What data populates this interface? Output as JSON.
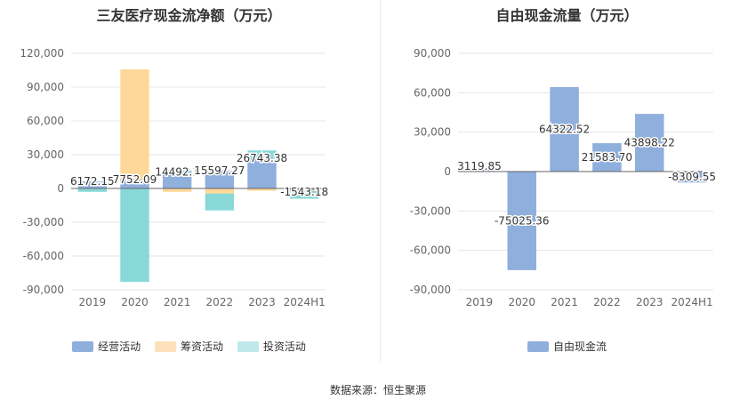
{
  "source_label": "数据来源：恒生聚源",
  "chart_data": [
    {
      "type": "bar",
      "stacked": true,
      "title": "三友医疗现金流净额（万元）",
      "categories": [
        "2019",
        "2020",
        "2021",
        "2022",
        "2023",
        "2024H1"
      ],
      "yticks": [
        "120,000",
        "90,000",
        "60,000",
        "30,000",
        "0",
        "-30,000",
        "-60,000",
        "-90,000"
      ],
      "ylim": [
        -90000,
        120000
      ],
      "ytick_values": [
        120000,
        90000,
        60000,
        30000,
        0,
        -30000,
        -60000,
        -90000
      ],
      "series": [
        {
          "name": "经营活动",
          "color": "#8fafdd",
          "values": [
            6172.15,
            7752.09,
            14492.1,
            15597.27,
            26743.38,
            -1543.18
          ]
        },
        {
          "name": "筹资活动",
          "color": "#fed898",
          "values": [
            -500,
            98000,
            -3000,
            -4500,
            -2000,
            -800
          ]
        },
        {
          "name": "投资活动",
          "color": "#88d8d8",
          "values": [
            -2500,
            -83000,
            1500,
            -15000,
            7000,
            -6800
          ]
        }
      ],
      "data_labels": [
        "6172.15",
        "7752.09",
        "14492.1",
        "15597.27",
        "26743.38",
        "-1543.18"
      ],
      "legend": [
        {
          "name": "经营活动",
          "color": "#8fafdd"
        },
        {
          "name": "筹资活动",
          "color": "#fde0bc"
        },
        {
          "name": "投资活动",
          "color": "#bfe8ea"
        }
      ]
    },
    {
      "type": "bar",
      "title": "自由现金流量（万元）",
      "categories": [
        "2019",
        "2020",
        "2021",
        "2022",
        "2023",
        "2024H1"
      ],
      "yticks": [
        "90,000",
        "60,000",
        "30,000",
        "0",
        "-30,000",
        "-60,000",
        "-90,000"
      ],
      "ylim": [
        -90000,
        90000
      ],
      "ytick_values": [
        90000,
        60000,
        30000,
        0,
        -30000,
        -60000,
        -90000
      ],
      "series": [
        {
          "name": "自由现金流",
          "color": "#8fafdd",
          "values": [
            3119.85,
            -75025.36,
            64322.52,
            21583.7,
            43898.22,
            -8309.55
          ]
        }
      ],
      "data_labels": [
        "3119.85",
        "-75025.36",
        "64322.52",
        "21583.70",
        "43898.22",
        "-8309.55"
      ],
      "legend": [
        {
          "name": "自由现金流",
          "color": "#8fafdd"
        }
      ]
    }
  ]
}
